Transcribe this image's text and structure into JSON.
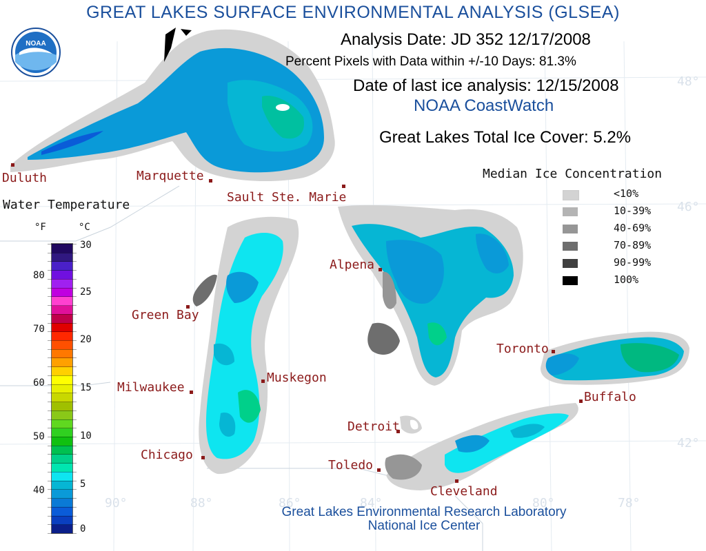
{
  "title": "GREAT LAKES SURFACE ENVIRONMENTAL ANALYSIS (GLSEA)",
  "header": {
    "analysis_date": "Analysis Date:  JD 352 12/17/2008",
    "percent_pixels": "Percent Pixels with Data within +/-10 Days:  81.3%",
    "last_ice": "Date of last ice analysis: 12/15/2008",
    "source": "NOAA CoastWatch",
    "total_ice": "Great Lakes Total Ice Cover:   5.2%"
  },
  "logo_text": "NOAA",
  "cities": [
    {
      "name": "Duluth"
    },
    {
      "name": "Marquette"
    },
    {
      "name": "Sault Ste. Marie"
    },
    {
      "name": "Green Bay"
    },
    {
      "name": "Alpena"
    },
    {
      "name": "Milwaukee"
    },
    {
      "name": "Muskegon"
    },
    {
      "name": "Chicago"
    },
    {
      "name": "Detroit"
    },
    {
      "name": "Toledo"
    },
    {
      "name": "Toronto"
    },
    {
      "name": "Buffalo"
    },
    {
      "name": "Cleveland"
    }
  ],
  "lat_lon": [
    "48°",
    "46°",
    "42°",
    "90°",
    "88°",
    "86°",
    "84°",
    "80°",
    "78°"
  ],
  "water_temp": {
    "title": "Water Temperature",
    "unit_f": "°F",
    "unit_c": "°C",
    "f_ticks": [
      "80",
      "70",
      "60",
      "50",
      "40"
    ],
    "c_ticks": [
      "30",
      "25",
      "20",
      "15",
      "10",
      "5",
      "0"
    ],
    "colors": [
      "#0b1f8a",
      "#0a3fbf",
      "#0a5cd8",
      "#0a7ad6",
      "#0a9ad8",
      "#06b6d4",
      "#0ee5f0",
      "#00e5b0",
      "#00d08a",
      "#00c050",
      "#10c010",
      "#30d020",
      "#60d820",
      "#8ac818",
      "#a0c000",
      "#c8d800",
      "#e8f000",
      "#ffff00",
      "#ffd000",
      "#ffa000",
      "#ff7800",
      "#ff5000",
      "#ff2800",
      "#e00000",
      "#c0004a",
      "#e0109a",
      "#ff40d0",
      "#c000e0",
      "#a020f0",
      "#7010e0",
      "#4a20c8",
      "#301880",
      "#200860"
    ]
  },
  "ice": {
    "title": "Median Ice Concentration",
    "items": [
      {
        "label": "<10%",
        "color": "#d3d3d3"
      },
      {
        "label": "10-39%",
        "color": "#b4b4b4"
      },
      {
        "label": "40-69%",
        "color": "#969696"
      },
      {
        "label": "70-89%",
        "color": "#6e6e6e"
      },
      {
        "label": "90-99%",
        "color": "#404040"
      },
      {
        "label": "100%",
        "color": "#000000"
      }
    ]
  },
  "footer": {
    "line1": "Great Lakes Environmental Research Laboratory",
    "line2": "National Ice Center"
  },
  "colors": {
    "title": "#1a4f9c",
    "city": "#8b1a1a",
    "ice_fringe": "#d3d3d3",
    "water_blue": "#0a9ad8",
    "water_cyan": "#0ee5f0",
    "water_teal": "#06b6d4",
    "water_green": "#00d08a"
  }
}
